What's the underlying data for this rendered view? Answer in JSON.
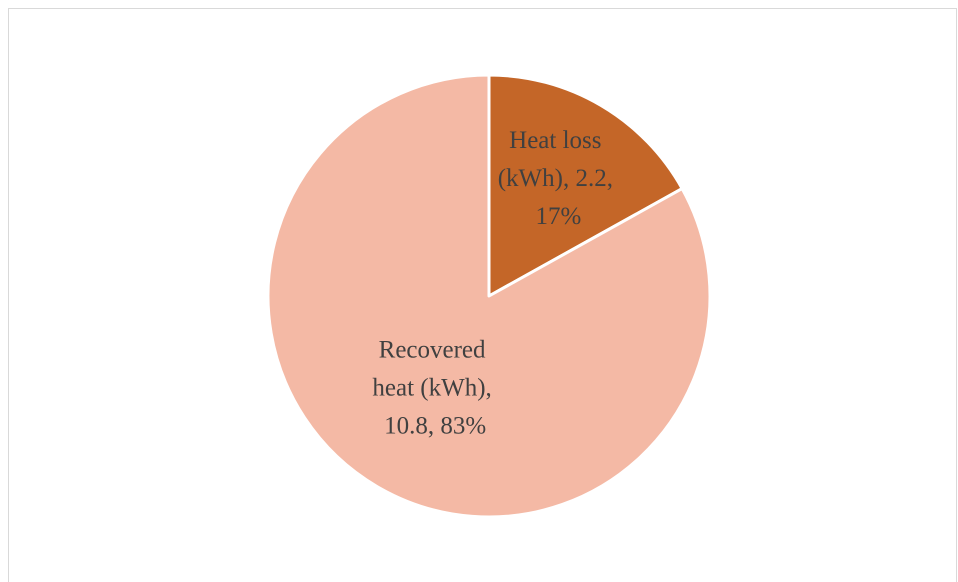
{
  "chart_data": {
    "type": "pie",
    "slices": [
      {
        "name": "Heat loss (kWh)",
        "value": 2.2,
        "percent": 17,
        "color": "#c46628",
        "label_lines": [
          "Heat loss",
          "(kWh), 2.2,",
          "17%"
        ]
      },
      {
        "name": "Recovered heat (kWh)",
        "value": 10.8,
        "percent": 83,
        "color": "#f4b9a5",
        "label_lines": [
          "Recovered",
          "heat (kWh),",
          "10.8, 83%"
        ]
      }
    ],
    "start_angle_deg": 0,
    "direction": "clockwise",
    "slice_border_color": "#ffffff",
    "legend": "none"
  }
}
